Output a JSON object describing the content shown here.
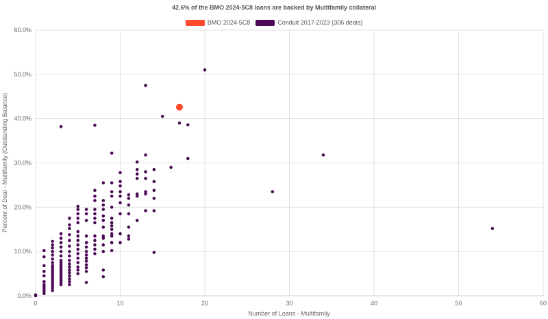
{
  "chart_data": {
    "type": "scatter",
    "title": "42.6% of the BMO 2024-5C8 loans are backed by Multifamily collateral",
    "xlabel": "Number of Loans - Multifamily",
    "ylabel": "Percent of Deal - Multifamily (Outstanding Balance)",
    "xlim": [
      0,
      60
    ],
    "ylim": [
      0,
      60
    ],
    "x_ticks": [
      "0",
      "10",
      "20",
      "30",
      "40",
      "50",
      "60"
    ],
    "y_ticks": [
      "0.0%",
      "10.0%",
      "20.0%",
      "30.0%",
      "40.0%",
      "50.0%",
      "60.0%"
    ],
    "grid": true,
    "legend_position": "top-center",
    "series": [
      {
        "name": "BMO 2024-5C8",
        "color": "#ff4a2d",
        "points": [
          [
            17,
            42.6
          ]
        ]
      },
      {
        "name": "Conduit 2017-2023 (306 deals)",
        "color": "#4b0a55",
        "points": [
          [
            0,
            0
          ],
          [
            0,
            0.2
          ],
          [
            1,
            0.5
          ],
          [
            1,
            1.0
          ],
          [
            1,
            1.5
          ],
          [
            1,
            2.0
          ],
          [
            1,
            2.5
          ],
          [
            1,
            3.2
          ],
          [
            1,
            4.5
          ],
          [
            1,
            5.5
          ],
          [
            1,
            6.8
          ],
          [
            1,
            8.8
          ],
          [
            1,
            10.2
          ],
          [
            2,
            1.2
          ],
          [
            2,
            1.8
          ],
          [
            2,
            2.3
          ],
          [
            2,
            2.8
          ],
          [
            2,
            3.3
          ],
          [
            2,
            3.8
          ],
          [
            2,
            4.3
          ],
          [
            2,
            4.8
          ],
          [
            2,
            5.3
          ],
          [
            2,
            5.8
          ],
          [
            2,
            6.3
          ],
          [
            2,
            6.8
          ],
          [
            2,
            7.5
          ],
          [
            2,
            8.3
          ],
          [
            2,
            9.2
          ],
          [
            2,
            10.0
          ],
          [
            2,
            10.8
          ],
          [
            2,
            11.5
          ],
          [
            2,
            12.3
          ],
          [
            3,
            2.5
          ],
          [
            3,
            3.0
          ],
          [
            3,
            3.5
          ],
          [
            3,
            4.0
          ],
          [
            3,
            4.5
          ],
          [
            3,
            5.0
          ],
          [
            3,
            5.5
          ],
          [
            3,
            6.0
          ],
          [
            3,
            6.5
          ],
          [
            3,
            7.0
          ],
          [
            3,
            7.5
          ],
          [
            3,
            8.0
          ],
          [
            3,
            9.0
          ],
          [
            3,
            10.0
          ],
          [
            3,
            11.0
          ],
          [
            3,
            12.0
          ],
          [
            3,
            13.0
          ],
          [
            3,
            14.0
          ],
          [
            3,
            38.2
          ],
          [
            4,
            2.5
          ],
          [
            4,
            3.2
          ],
          [
            4,
            3.8
          ],
          [
            4,
            4.5
          ],
          [
            4,
            5.2
          ],
          [
            4,
            5.8
          ],
          [
            4,
            6.5
          ],
          [
            4,
            7.2
          ],
          [
            4,
            8.0
          ],
          [
            4,
            9.0
          ],
          [
            4,
            10.0
          ],
          [
            4,
            11.2
          ],
          [
            4,
            12.5
          ],
          [
            4,
            13.8
          ],
          [
            4,
            15.2
          ],
          [
            4,
            16.0
          ],
          [
            4,
            17.5
          ],
          [
            5,
            5.0
          ],
          [
            5,
            5.8
          ],
          [
            5,
            6.5
          ],
          [
            5,
            7.5
          ],
          [
            5,
            8.5
          ],
          [
            5,
            9.5
          ],
          [
            5,
            10.5
          ],
          [
            5,
            11.5
          ],
          [
            5,
            12.5
          ],
          [
            5,
            13.5
          ],
          [
            5,
            14.5
          ],
          [
            5,
            16.5
          ],
          [
            5,
            17.5
          ],
          [
            5,
            18.5
          ],
          [
            5,
            19.5
          ],
          [
            5,
            20.2
          ],
          [
            6,
            3.0
          ],
          [
            6,
            5.5
          ],
          [
            6,
            6.3
          ],
          [
            6,
            7.0
          ],
          [
            6,
            7.8
          ],
          [
            6,
            8.5
          ],
          [
            6,
            9.2
          ],
          [
            6,
            10.0
          ],
          [
            6,
            11.0
          ],
          [
            6,
            12.0
          ],
          [
            6,
            13.5
          ],
          [
            6,
            17.0
          ],
          [
            6,
            18.5
          ],
          [
            6,
            19.5
          ],
          [
            7,
            9.5
          ],
          [
            7,
            10.5
          ],
          [
            7,
            11.5
          ],
          [
            7,
            12.5
          ],
          [
            7,
            13.5
          ],
          [
            7,
            16.5
          ],
          [
            7,
            17.5
          ],
          [
            7,
            18.5
          ],
          [
            7,
            19.5
          ],
          [
            7,
            21.5
          ],
          [
            7,
            22.5
          ],
          [
            7,
            23.8
          ],
          [
            7,
            38.5
          ],
          [
            8,
            4.3
          ],
          [
            8,
            5.8
          ],
          [
            8,
            10.0
          ],
          [
            8,
            11.5
          ],
          [
            8,
            13.0
          ],
          [
            8,
            13.5
          ],
          [
            8,
            15.5
          ],
          [
            8,
            17.0
          ],
          [
            8,
            18.0
          ],
          [
            8,
            19.5
          ],
          [
            8,
            20.5
          ],
          [
            8,
            21.5
          ],
          [
            8,
            25.5
          ],
          [
            9,
            10.2
          ],
          [
            9,
            12.0
          ],
          [
            9,
            13.5
          ],
          [
            9,
            14.0
          ],
          [
            9,
            15.0
          ],
          [
            9,
            15.8
          ],
          [
            9,
            16.5
          ],
          [
            9,
            17.5
          ],
          [
            9,
            20.0
          ],
          [
            9,
            22.5
          ],
          [
            9,
            23.5
          ],
          [
            9,
            25.5
          ],
          [
            9,
            32.2
          ],
          [
            10,
            12.0
          ],
          [
            10,
            14.0
          ],
          [
            10,
            18.5
          ],
          [
            10,
            21.0
          ],
          [
            10,
            22.5
          ],
          [
            10,
            23.5
          ],
          [
            10,
            24.8
          ],
          [
            10,
            25.8
          ],
          [
            10,
            27.8
          ],
          [
            11,
            12.8
          ],
          [
            11,
            13.5
          ],
          [
            11,
            15.5
          ],
          [
            11,
            18.5
          ],
          [
            11,
            20.5
          ],
          [
            11,
            22.0
          ],
          [
            11,
            22.8
          ],
          [
            12,
            17.0
          ],
          [
            12,
            22.5
          ],
          [
            12,
            23.0
          ],
          [
            12,
            26.5
          ],
          [
            12,
            27.5
          ],
          [
            12,
            28.5
          ],
          [
            12,
            30.2
          ],
          [
            13,
            19.2
          ],
          [
            13,
            23.0
          ],
          [
            13,
            23.5
          ],
          [
            13,
            26.5
          ],
          [
            13,
            28.0
          ],
          [
            13,
            31.8
          ],
          [
            13,
            47.5
          ],
          [
            14,
            9.8
          ],
          [
            14,
            19.2
          ],
          [
            14,
            22.0
          ],
          [
            14,
            23.8
          ],
          [
            14,
            25.8
          ],
          [
            14,
            28.5
          ],
          [
            15,
            40.5
          ],
          [
            16,
            29.0
          ],
          [
            17,
            39.0
          ],
          [
            18,
            31.0
          ],
          [
            18,
            38.6
          ],
          [
            20,
            51.0
          ],
          [
            28,
            23.5
          ],
          [
            34,
            31.8
          ],
          [
            54,
            15.2
          ]
        ]
      }
    ]
  }
}
